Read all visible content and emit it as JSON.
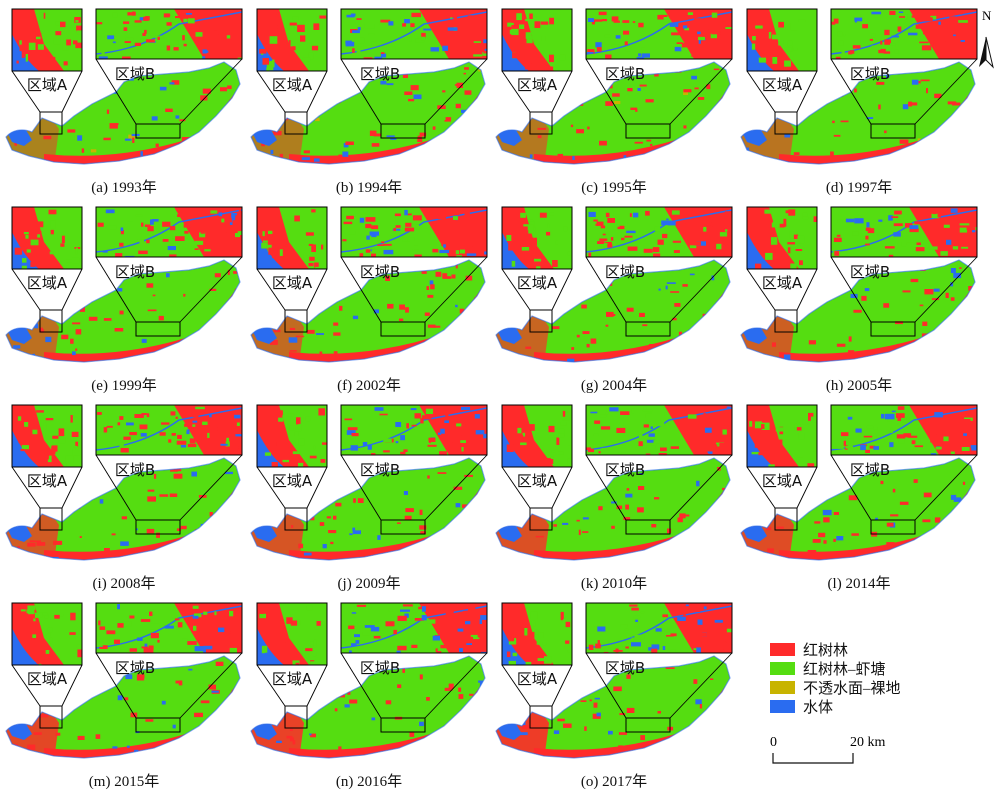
{
  "north_label": "N",
  "region_a_label": "区域A",
  "region_b_label": "区域B",
  "panels": [
    {
      "caption": "(a) 1993年"
    },
    {
      "caption": "(b) 1994年"
    },
    {
      "caption": "(c) 1995年"
    },
    {
      "caption": "(d) 1997年"
    },
    {
      "caption": "(e) 1999年"
    },
    {
      "caption": "(f) 2002年"
    },
    {
      "caption": "(g) 2004年"
    },
    {
      "caption": "(h) 2005年"
    },
    {
      "caption": "(i) 2008年"
    },
    {
      "caption": "(j) 2009年"
    },
    {
      "caption": "(k) 2010年"
    },
    {
      "caption": "(l) 2014年"
    },
    {
      "caption": "(m) 2015年"
    },
    {
      "caption": "(n) 2016年"
    },
    {
      "caption": "(o) 2017年"
    }
  ],
  "legend": [
    {
      "label": "红树林",
      "color": "#ff2a2a"
    },
    {
      "label": "红树林–虾塘",
      "color": "#55dd11"
    },
    {
      "label": "不透水面–裸地",
      "color": "#c8b400"
    },
    {
      "label": "水体",
      "color": "#2a6cf0"
    }
  ],
  "scale": {
    "start": "0",
    "end": "20 km"
  },
  "colors": {
    "mangrove": "#ff2a2a",
    "shrimp": "#55dd11",
    "water": "#2a6cf0",
    "bare": "#c8b400"
  }
}
